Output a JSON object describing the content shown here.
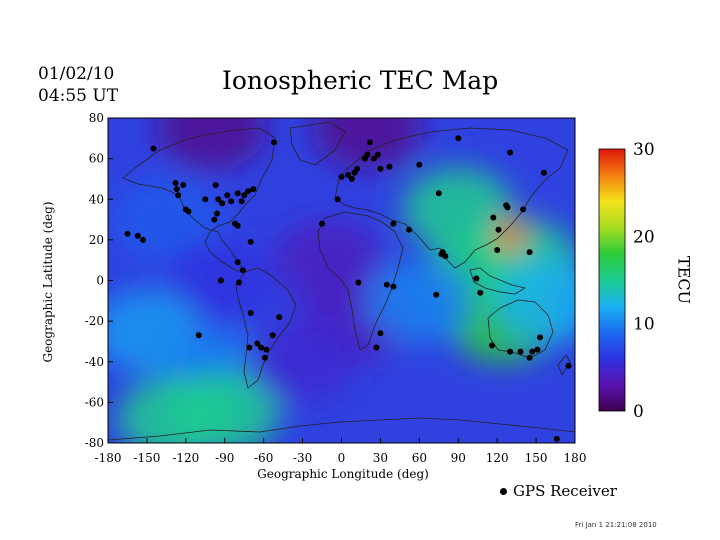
{
  "header": {
    "date": "01/02/10",
    "time": "04:55 UT",
    "title": "Ionospheric TEC Map"
  },
  "footer": {
    "timestamp": "Fri Jan  1 21:21:08 2010"
  },
  "colorbar": {
    "label": "TECU",
    "ticks": [
      "30",
      "20",
      "10",
      "0"
    ],
    "range": [
      0,
      30
    ],
    "colors": [
      "#3f0050",
      "#5a13b0",
      "#2d33e0",
      "#1b6cf0",
      "#1ab0f0",
      "#1ccc90",
      "#2ccb39",
      "#a7dc22",
      "#f3e21a",
      "#f37f10",
      "#e0160f"
    ]
  },
  "legend": {
    "label": "GPS Receiver"
  },
  "chart_data": {
    "type": "heatmap",
    "title": "Ionospheric TEC Map",
    "xlabel": "Geographic Longitude (deg)",
    "ylabel": "Geographic Latitude (deg)",
    "xlim": [
      -180,
      180
    ],
    "ylim": [
      -80,
      80
    ],
    "x_ticks": [
      "-180",
      "-150",
      "-120",
      "-90",
      "-60",
      "-30",
      "0",
      "30",
      "60",
      "90",
      "120",
      "150",
      "180"
    ],
    "y_ticks": [
      "80",
      "60",
      "40",
      "20",
      "0",
      "-20",
      "-40",
      "-60",
      "-80"
    ],
    "field_patches": [
      {
        "lon": -135,
        "lat": 30,
        "tec": 8
      },
      {
        "lon": -95,
        "lat": 0,
        "tec": 6
      },
      {
        "lon": -150,
        "lat": -25,
        "tec": 11
      },
      {
        "lon": -95,
        "lat": -45,
        "tec": 10
      },
      {
        "lon": -90,
        "lat": -65,
        "tec": 15
      },
      {
        "lon": -130,
        "lat": -68,
        "tec": 15
      },
      {
        "lon": -10,
        "lat": 10,
        "tec": 4
      },
      {
        "lon": 10,
        "lat": -20,
        "tec": 4
      },
      {
        "lon": -30,
        "lat": -40,
        "tec": 5
      },
      {
        "lon": 110,
        "lat": 5,
        "tec": 16
      },
      {
        "lon": 125,
        "lat": -20,
        "tec": 18
      },
      {
        "lon": 90,
        "lat": 35,
        "tec": 15
      },
      {
        "lon": 140,
        "lat": 10,
        "tec": 15
      },
      {
        "lon": 130,
        "lat": 22,
        "tec": 28
      },
      {
        "lon": 60,
        "lat": -10,
        "tec": 10
      },
      {
        "lon": 160,
        "lat": -10,
        "tec": 12
      },
      {
        "lon": 20,
        "lat": 75,
        "tec": 2
      },
      {
        "lon": -100,
        "lat": 75,
        "tec": 2
      }
    ],
    "receivers": [
      [
        -145,
        65
      ],
      [
        -128,
        48
      ],
      [
        -127,
        45
      ],
      [
        -126,
        42
      ],
      [
        -122,
        47
      ],
      [
        -120,
        35
      ],
      [
        -118,
        34
      ],
      [
        -105,
        40
      ],
      [
        -97,
        47
      ],
      [
        -95,
        40
      ],
      [
        -92,
        38
      ],
      [
        -88,
        42
      ],
      [
        -85,
        39
      ],
      [
        -80,
        43
      ],
      [
        -77,
        39
      ],
      [
        -75,
        42
      ],
      [
        -72,
        44
      ],
      [
        -68,
        45
      ],
      [
        -80,
        27
      ],
      [
        -82,
        28
      ],
      [
        -98,
        30
      ],
      [
        -96,
        33
      ],
      [
        -70,
        19
      ],
      [
        -80,
        9
      ],
      [
        -76,
        5
      ],
      [
        -93,
        0
      ],
      [
        -79,
        -1
      ],
      [
        -70,
        -16
      ],
      [
        -71,
        -33
      ],
      [
        -65,
        -31
      ],
      [
        -62,
        -33
      ],
      [
        -58,
        -34
      ],
      [
        -59,
        -38
      ],
      [
        -53,
        -27
      ],
      [
        -48,
        -18
      ],
      [
        -157,
        22
      ],
      [
        -153,
        20
      ],
      [
        -110,
        -27
      ],
      [
        -52,
        68
      ],
      [
        -15,
        28
      ],
      [
        -3,
        40
      ],
      [
        0,
        51
      ],
      [
        5,
        52
      ],
      [
        8,
        50
      ],
      [
        10,
        53
      ],
      [
        12,
        55
      ],
      [
        18,
        60
      ],
      [
        22,
        68
      ],
      [
        25,
        60
      ],
      [
        30,
        55
      ],
      [
        37,
        56
      ],
      [
        60,
        57
      ],
      [
        90,
        70
      ],
      [
        20,
        62
      ],
      [
        28,
        62
      ],
      [
        40,
        28
      ],
      [
        52,
        25
      ],
      [
        75,
        43
      ],
      [
        77,
        13
      ],
      [
        78,
        14
      ],
      [
        73,
        -7
      ],
      [
        35,
        -2
      ],
      [
        30,
        -26
      ],
      [
        27,
        -33
      ],
      [
        13,
        -1
      ],
      [
        40,
        -3
      ],
      [
        80,
        12
      ],
      [
        104,
        1
      ],
      [
        107,
        -6
      ],
      [
        117,
        31
      ],
      [
        121,
        25
      ],
      [
        127,
        37
      ],
      [
        128,
        36
      ],
      [
        140,
        35
      ],
      [
        145,
        14
      ],
      [
        130,
        63
      ],
      [
        156,
        53
      ],
      [
        120,
        15
      ],
      [
        116,
        -32
      ],
      [
        130,
        -35
      ],
      [
        138,
        -35
      ],
      [
        145,
        -38
      ],
      [
        151,
        -34
      ],
      [
        147,
        -35
      ],
      [
        153,
        -28
      ],
      [
        175,
        -42
      ],
      [
        -165,
        23
      ],
      [
        166,
        -78
      ]
    ]
  }
}
